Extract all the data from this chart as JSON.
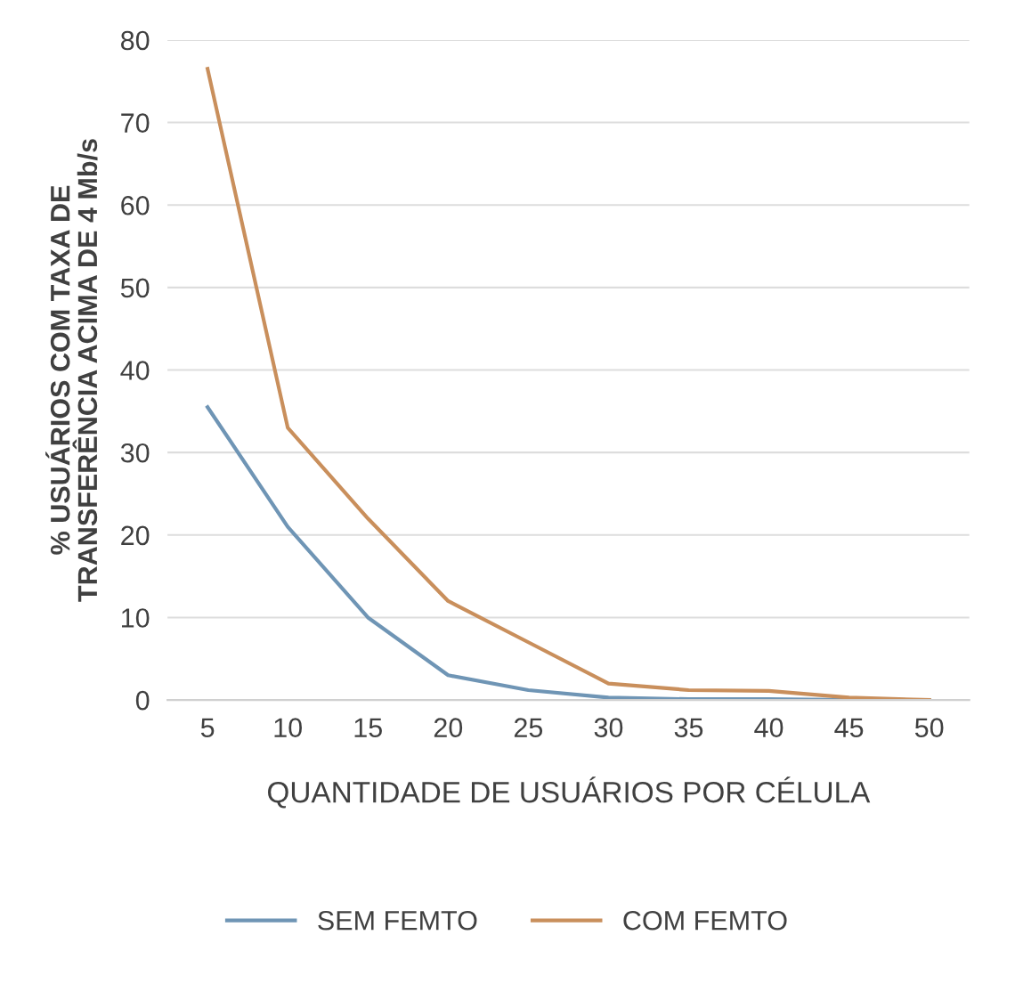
{
  "chart_data": {
    "type": "line",
    "xlabel": "QUANTIDADE DE USUÁRIOS POR CÉLULA",
    "ylabel": "% USUÁRIOS COM TAXA DE\nTRANSFERÊNCIA ACIMA DE 4 Mb/s",
    "categories": [
      "5",
      "10",
      "15",
      "20",
      "25",
      "30",
      "35",
      "40",
      "45",
      "50"
    ],
    "series": [
      {
        "name": "SEM FEMTO",
        "color": "#6f95b5",
        "values": [
          35.5,
          21,
          10,
          3,
          1.2,
          0.3,
          0.1,
          0.1,
          0,
          0
        ]
      },
      {
        "name": "COM FEMTO",
        "color": "#c98f5c",
        "values": [
          76.5,
          33,
          22,
          12,
          7,
          2,
          1.2,
          1.1,
          0.3,
          0
        ]
      }
    ],
    "ylim": [
      0,
      80
    ],
    "yticks": [
      0,
      10,
      20,
      30,
      40,
      50,
      60,
      70,
      80
    ],
    "grid": "y",
    "legend": "bottom",
    "marker": "none",
    "line_style": "solid"
  }
}
